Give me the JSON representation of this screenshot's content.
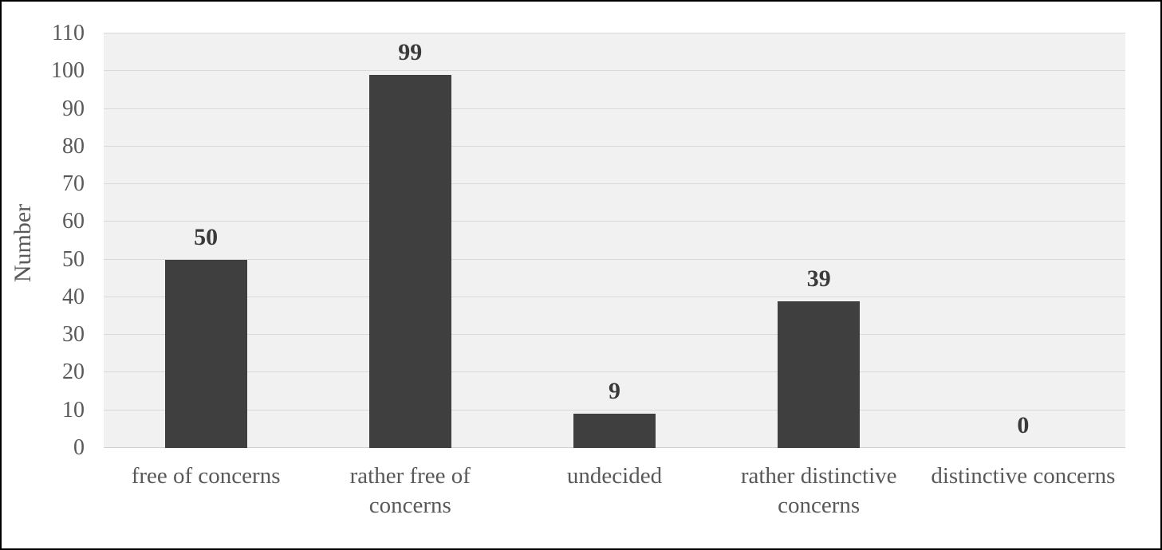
{
  "chart_data": {
    "type": "bar",
    "categories": [
      "free of concerns",
      "rather free of concerns",
      "undecided",
      "rather distinctive concerns",
      "distinctive concerns"
    ],
    "category_label_lines": [
      [
        "free of concerns"
      ],
      [
        "rather free of",
        "concerns"
      ],
      [
        "undecided"
      ],
      [
        "rather distinctive",
        "concerns"
      ],
      [
        "distinctive concerns"
      ]
    ],
    "values": [
      50,
      99,
      9,
      39,
      0
    ],
    "data_labels": [
      "50",
      "99",
      "9",
      "39",
      "0"
    ],
    "title": "",
    "xlabel": "",
    "ylabel": "Number",
    "ylim": [
      0,
      110
    ],
    "ytick_step": 10,
    "ytick_labels": [
      "0",
      "10",
      "20",
      "30",
      "40",
      "50",
      "60",
      "70",
      "80",
      "90",
      "100",
      "110"
    ],
    "grid": "horizontal",
    "legend": "none",
    "colors": {
      "bar": "#3f3f3f",
      "plot_background": "#f1f1f1",
      "gridline": "#d9d9d9",
      "axis_line": "#d0d0d0",
      "tick_label": "#595959",
      "category_label": "#595959",
      "value_label": "#3a3a3a",
      "axis_title": "#595959",
      "outer_border": "#000000",
      "page_background": "#ffffff"
    }
  }
}
